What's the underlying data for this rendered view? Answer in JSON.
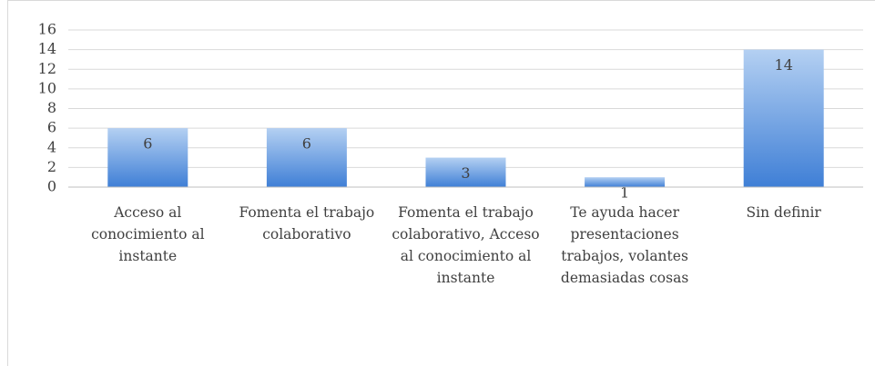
{
  "chart_data": {
    "type": "bar",
    "categories": [
      "Acceso al conocimiento al instante",
      "Fomenta el trabajo colaborativo",
      "Fomenta el trabajo colaborativo, Acceso al conocimiento al instante",
      "Te ayuda hacer presentaciones trabajos, volantes demasiadas cosas",
      "Sin definir"
    ],
    "values": [
      6,
      6,
      3,
      1,
      14
    ],
    "color": "#4a8ae0",
    "ylim": [
      0,
      16
    ],
    "yticks": [
      0,
      2,
      4,
      6,
      8,
      10,
      12,
      14,
      16
    ],
    "grid": true
  }
}
